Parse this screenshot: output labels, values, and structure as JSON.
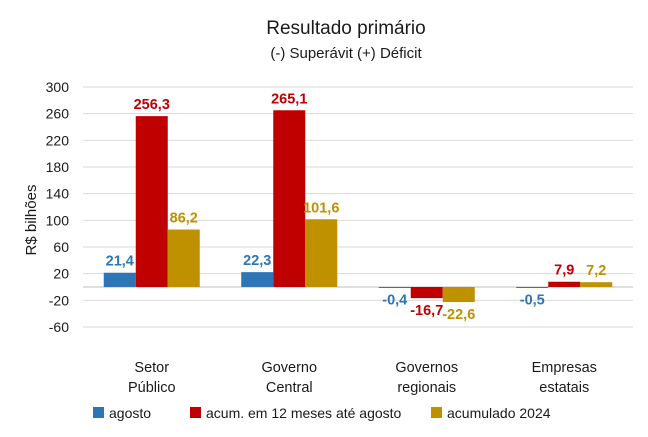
{
  "chart_data": {
    "type": "bar",
    "title": "Resultado primário",
    "subtitle": "(-) Superávit  (+) Déficit",
    "ylabel": "R$ bilhões",
    "ylim": [
      -60,
      300
    ],
    "yticks": [
      300,
      260,
      220,
      180,
      140,
      100,
      60,
      20,
      -20,
      -60
    ],
    "grid": true,
    "legend": "bottom",
    "categories": [
      [
        "Setor",
        "Público"
      ],
      [
        "Governo",
        "Central"
      ],
      [
        "Governos",
        "regionais"
      ],
      [
        "Empresas",
        "estatais"
      ]
    ],
    "series": [
      {
        "name": "agosto",
        "color": "#2e75b6",
        "values": [
          21.4,
          22.3,
          -0.4,
          -0.5
        ],
        "labels": [
          "21,4",
          "22,3",
          "-0,4",
          "-0,5"
        ]
      },
      {
        "name": "acum. em 12 meses até agosto",
        "color": "#c00000",
        "values": [
          256.3,
          265.1,
          -16.7,
          7.9
        ],
        "labels": [
          "256,3",
          "265,1",
          "-16,7",
          "7,9"
        ]
      },
      {
        "name": "acumulado 2024",
        "color": "#bf9000",
        "values": [
          86.2,
          101.6,
          -22.6,
          7.2
        ],
        "labels": [
          "86,2",
          "101,6",
          "-22,6",
          "7,2"
        ]
      }
    ]
  }
}
